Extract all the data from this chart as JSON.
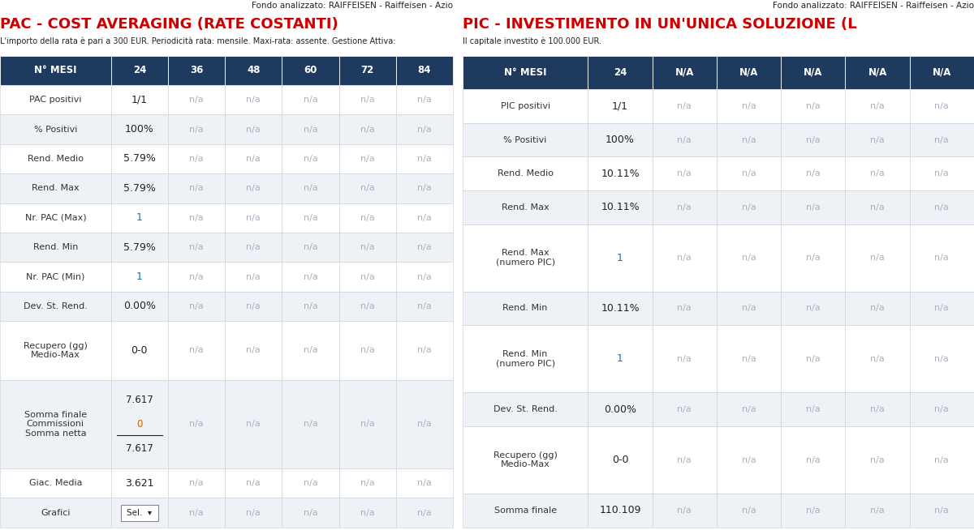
{
  "header_text": "Fondo analizzato: RAIFFEISEN - Raiffeisen - Azio",
  "pac_title": "PAC - COST AVERAGING (RATE COSTANTI)",
  "pac_subtitle": "L'importo della rata è pari a 300 EUR. Periodicità rata: mensile. Maxi-rata: assente. Gestione Attiva:",
  "pic_title": "PIC - INVESTIMENTO IN UN'UNICA SOLUZIONE (L",
  "pic_subtitle": "Il capitale investito è 100.000 EUR.",
  "pac_columns": [
    "N° MESI",
    "24",
    "36",
    "48",
    "60",
    "72",
    "84"
  ],
  "pic_columns": [
    "N° MESI",
    "24",
    "N/A",
    "N/A",
    "N/A",
    "N/A",
    "N/A"
  ],
  "pac_rows": [
    {
      "label": "PAC positivi",
      "val": "1/1",
      "blue": false,
      "multi": 1
    },
    {
      "label": "% Positivi",
      "val": "100%",
      "blue": false,
      "multi": 1
    },
    {
      "label": "Rend. Medio",
      "val": "5.79%",
      "blue": false,
      "multi": 1
    },
    {
      "label": "Rend. Max",
      "val": "5.79%",
      "blue": false,
      "multi": 1
    },
    {
      "label": "Nr. PAC (Max)",
      "val": "1",
      "blue": true,
      "multi": 1
    },
    {
      "label": "Rend. Min",
      "val": "5.79%",
      "blue": false,
      "multi": 1
    },
    {
      "label": "Nr. PAC (Min)",
      "val": "1",
      "blue": true,
      "multi": 1
    },
    {
      "label": "Dev. St. Rend.",
      "val": "0.00%",
      "blue": false,
      "multi": 1
    },
    {
      "label": "Recupero (gg)\nMedio-Max",
      "val": "0-0",
      "blue": false,
      "multi": 2
    },
    {
      "label": "Somma finale\nCommissioni\nSomma netta",
      "val": "7.617\n0\n7.617",
      "blue": false,
      "multi": 3
    },
    {
      "label": "Giac. Media",
      "val": "3.621",
      "blue": false,
      "multi": 1
    },
    {
      "label": "Grafici",
      "val": "Sel.",
      "blue": false,
      "multi": 1,
      "button": true
    }
  ],
  "pic_rows": [
    {
      "label": "PIC positivi",
      "val": "1/1",
      "blue": false,
      "multi": 1
    },
    {
      "label": "% Positivi",
      "val": "100%",
      "blue": false,
      "multi": 1
    },
    {
      "label": "Rend. Medio",
      "val": "10.11%",
      "blue": false,
      "multi": 1
    },
    {
      "label": "Rend. Max",
      "val": "10.11%",
      "blue": false,
      "multi": 1
    },
    {
      "label": "Rend. Max\n(numero PIC)",
      "val": "1",
      "blue": true,
      "multi": 2
    },
    {
      "label": "Rend. Min",
      "val": "10.11%",
      "blue": false,
      "multi": 1
    },
    {
      "label": "Rend. Min\n(numero PIC)",
      "val": "1",
      "blue": true,
      "multi": 2
    },
    {
      "label": "Dev. St. Rend.",
      "val": "0.00%",
      "blue": false,
      "multi": 1
    },
    {
      "label": "Recupero (gg)\nMedio-Max",
      "val": "0-0",
      "blue": false,
      "multi": 2
    },
    {
      "label": "Somma finale",
      "val": "110.109",
      "blue": false,
      "multi": 1
    }
  ],
  "header_bg": "#1e3a5f",
  "header_fg": "#ffffff",
  "row_bg_even": "#ffffff",
  "row_bg_odd": "#eef2f7",
  "na_color": "#aab0bb",
  "blue_color": "#1a6ec0",
  "dark_text": "#222222",
  "label_text": "#333333",
  "orange_text": "#cc6600",
  "title_color": "#cc0000",
  "bg_color": "#ffffff",
  "border_color": "#c8ced6"
}
